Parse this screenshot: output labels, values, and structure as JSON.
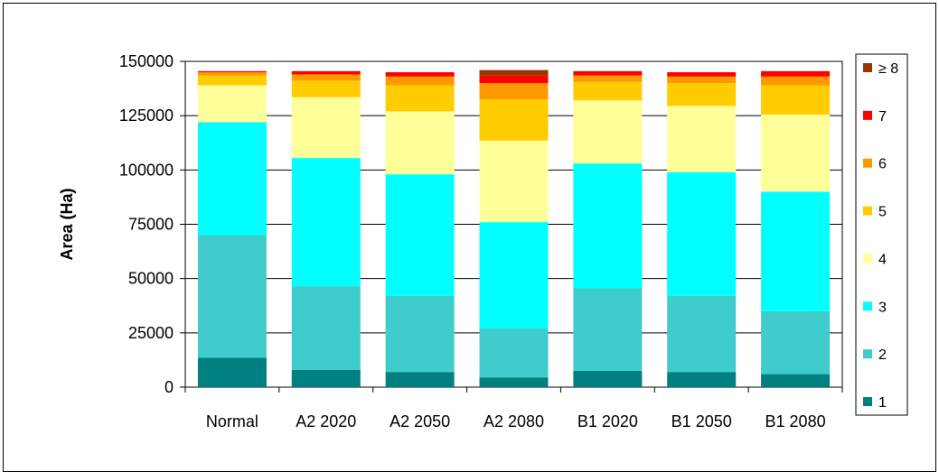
{
  "chart_data": {
    "type": "bar",
    "stacked": true,
    "ylabel": "Area (Ha)",
    "ylim": [
      0,
      150000
    ],
    "yticks": [
      "0",
      "25000",
      "50000",
      "75000",
      "100000",
      "125000",
      "150000"
    ],
    "yticks_values": [
      0,
      25000,
      50000,
      75000,
      100000,
      125000,
      150000
    ],
    "grid": true,
    "legend_position": "right",
    "categories": [
      "Normal",
      "A2 2020",
      "A2 2050",
      "A2 2080",
      "B1 2020",
      "B1 2050",
      "B1 2080"
    ],
    "series": [
      {
        "name": "1",
        "color": "#008080",
        "values": [
          13500,
          8000,
          7000,
          4500,
          7500,
          7000,
          6000
        ]
      },
      {
        "name": "2",
        "color": "#40CCCC",
        "values": [
          56500,
          38500,
          35000,
          22500,
          38000,
          35000,
          29000
        ]
      },
      {
        "name": "3",
        "color": "#00FFFF",
        "values": [
          52000,
          59000,
          56000,
          49000,
          57500,
          57000,
          55000
        ]
      },
      {
        "name": "4",
        "color": "#FFFF99",
        "values": [
          17000,
          28000,
          29000,
          37500,
          29000,
          30500,
          35500
        ]
      },
      {
        "name": "5",
        "color": "#FFCC00",
        "values": [
          4500,
          7500,
          12000,
          19000,
          8500,
          10500,
          13500
        ]
      },
      {
        "name": "6",
        "color": "#FF9900",
        "values": [
          1500,
          3000,
          4000,
          7500,
          3000,
          3000,
          4000
        ]
      },
      {
        "name": "7",
        "color": "#FF0000",
        "values": [
          500,
          1500,
          2000,
          3500,
          2000,
          2000,
          2500
        ]
      },
      {
        "name": "≥ 8",
        "color": "#993300",
        "values": [
          0,
          0,
          0,
          2500,
          0,
          0,
          0
        ]
      }
    ]
  }
}
